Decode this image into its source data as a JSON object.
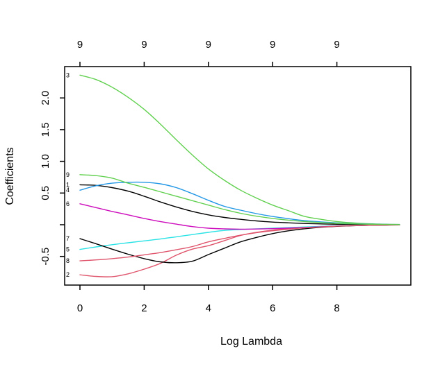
{
  "chart_data": {
    "type": "line",
    "title": "",
    "xlabel": "Log Lambda",
    "ylabel": "Coefficients",
    "xlim": [
      -0.48,
      10.32
    ],
    "ylim": [
      -0.95,
      2.49
    ],
    "grid": false,
    "legend": false,
    "x_ticks": {
      "values": [
        0,
        2,
        4,
        6,
        8
      ],
      "labels": [
        "0",
        "2",
        "4",
        "6",
        "8"
      ]
    },
    "top_ticks": {
      "values": [
        0,
        2,
        4,
        6,
        8
      ],
      "labels": [
        "9",
        "9",
        "9",
        "9",
        "9"
      ]
    },
    "y_ticks": {
      "values": [
        2.0,
        1.5,
        1.0,
        0.5,
        0.0,
        -0.5
      ],
      "labels": [
        "2.0",
        "1.5",
        "1.0",
        "0.5",
        "",
        "-0.5"
      ]
    },
    "x": [
      0,
      0.5,
      1,
      1.5,
      2,
      2.5,
      3,
      3.5,
      4,
      4.5,
      5,
      5.5,
      6,
      6.5,
      7,
      7.5,
      8,
      8.5,
      9,
      9.5,
      9.95
    ],
    "series": [
      {
        "name": "1",
        "color": "#000000",
        "values": [
          0.63,
          0.62,
          0.585,
          0.53,
          0.45,
          0.36,
          0.28,
          0.21,
          0.155,
          0.115,
          0.085,
          0.06,
          0.042,
          0.03,
          0.02,
          0.013,
          0.008,
          0.005,
          0.003,
          0.002,
          0.001
        ]
      },
      {
        "name": "2",
        "color": "#DF536B",
        "values": [
          -0.79,
          -0.815,
          -0.82,
          -0.775,
          -0.7,
          -0.61,
          -0.48,
          -0.385,
          -0.33,
          -0.25,
          -0.17,
          -0.12,
          -0.085,
          -0.06,
          -0.04,
          -0.027,
          -0.017,
          -0.011,
          -0.007,
          -0.004,
          -0.002
        ]
      },
      {
        "name": "3",
        "color": "#61D04F",
        "values": [
          2.36,
          2.29,
          2.17,
          2.01,
          1.82,
          1.59,
          1.34,
          1.1,
          0.88,
          0.7,
          0.545,
          0.42,
          0.31,
          0.22,
          0.13,
          0.085,
          0.05,
          0.03,
          0.015,
          0.008,
          0.004
        ]
      },
      {
        "name": "4",
        "color": "#2297E6",
        "values": [
          0.545,
          0.615,
          0.655,
          0.67,
          0.67,
          0.645,
          0.585,
          0.49,
          0.385,
          0.29,
          0.23,
          0.175,
          0.13,
          0.095,
          0.065,
          0.045,
          0.03,
          0.018,
          0.01,
          0.005,
          0.003
        ]
      },
      {
        "name": "5",
        "color": "#28E2E5",
        "values": [
          -0.39,
          -0.35,
          -0.315,
          -0.285,
          -0.255,
          -0.225,
          -0.19,
          -0.155,
          -0.12,
          -0.09,
          -0.075,
          -0.065,
          -0.055,
          -0.045,
          -0.035,
          -0.026,
          -0.018,
          -0.012,
          -0.008,
          -0.004,
          -0.002
        ]
      },
      {
        "name": "6",
        "color": "#CD0BBC",
        "values": [
          0.33,
          0.27,
          0.21,
          0.155,
          0.1,
          0.05,
          0.01,
          -0.03,
          -0.055,
          -0.066,
          -0.07,
          -0.068,
          -0.062,
          -0.053,
          -0.043,
          -0.032,
          -0.022,
          -0.014,
          -0.008,
          -0.004,
          -0.002
        ]
      },
      {
        "name": "7",
        "color": "#000000",
        "values": [
          -0.22,
          -0.3,
          -0.385,
          -0.465,
          -0.535,
          -0.585,
          -0.6,
          -0.575,
          -0.47,
          -0.37,
          -0.27,
          -0.2,
          -0.14,
          -0.095,
          -0.063,
          -0.04,
          -0.025,
          -0.015,
          -0.009,
          -0.005,
          -0.003
        ]
      },
      {
        "name": "8",
        "color": "#DF536B",
        "values": [
          -0.57,
          -0.555,
          -0.535,
          -0.51,
          -0.475,
          -0.44,
          -0.395,
          -0.345,
          -0.27,
          -0.215,
          -0.165,
          -0.125,
          -0.095,
          -0.07,
          -0.05,
          -0.035,
          -0.023,
          -0.015,
          -0.009,
          -0.005,
          -0.003
        ]
      },
      {
        "name": "9",
        "color": "#61D04F",
        "values": [
          0.79,
          0.775,
          0.735,
          0.655,
          0.59,
          0.52,
          0.45,
          0.38,
          0.31,
          0.24,
          0.18,
          0.135,
          0.1,
          0.072,
          0.05,
          0.034,
          0.022,
          0.014,
          0.008,
          0.004,
          0.002
        ]
      }
    ]
  }
}
